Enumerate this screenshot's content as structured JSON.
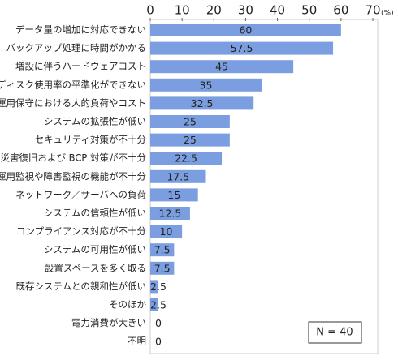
{
  "chart_data": {
    "type": "bar",
    "orientation": "horizontal",
    "categories": [
      "データ量の増加に対応できない",
      "バックアップ処理に時間がかかる",
      "増設に伴うハードウェアコスト",
      "ディスク使用率の平準化ができない",
      "運用保守における人的負荷やコスト",
      "システムの拡張性が低い",
      "セキュリティ対策が不十分",
      "災害復旧および BCP 対策が不十分",
      "運用監視や障害監視の機能が不十分",
      "ネットワーク／サーバへの負荷",
      "システムの信頼性が低い",
      "コンプライアンス対応が不十分",
      "システムの可用性が低い",
      "設置スペースを多く取る",
      "既存システムとの親和性が低い",
      "そのほか",
      "電力消費が大きい",
      "不明"
    ],
    "values": [
      60,
      57.5,
      45,
      35,
      32.5,
      25,
      25,
      22.5,
      17.5,
      15,
      12.5,
      10,
      7.5,
      7.5,
      2.5,
      2.5,
      0,
      0
    ],
    "color": "#7b9ee0",
    "xlim": [
      0,
      70
    ],
    "xticks": [
      0,
      10,
      20,
      30,
      40,
      50,
      60,
      70
    ],
    "x_unit": "(%)",
    "annotation": "N = 40"
  }
}
